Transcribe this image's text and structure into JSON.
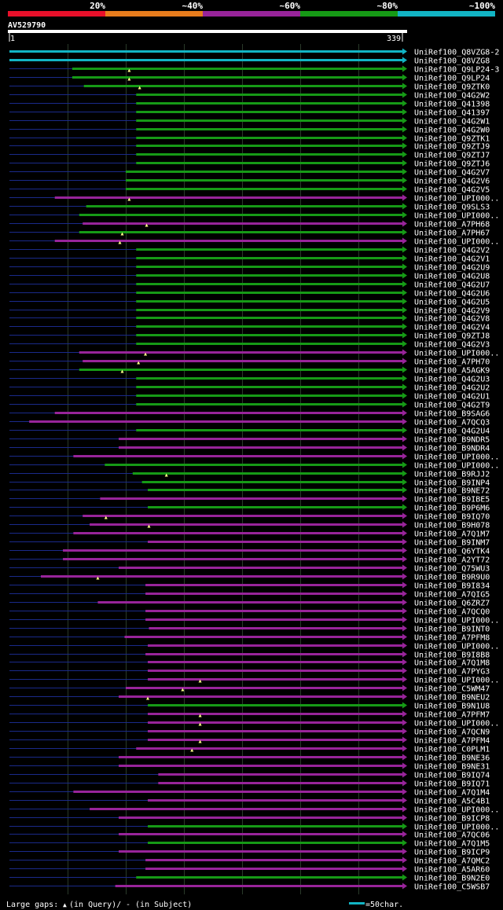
{
  "colors": {
    "scale": [
      "#e8102a",
      "#e87c1c",
      "#98249a",
      "#169a16",
      "#12b4c4"
    ],
    "pct_color_map": {
      "100": "#12b4c4",
      "80": "#169a16",
      "60": "#98249a"
    },
    "gap": "#1a2a8a",
    "marker": "#ffff88",
    "grid": "#2a3a2a"
  },
  "scale_bar": {
    "labels": [
      "20%",
      "~40%",
      "~60%",
      "~80%",
      "~100%"
    ]
  },
  "query": {
    "name": "AV529790",
    "start_label": "1",
    "end_label": "339"
  },
  "legend": {
    "large_gaps_label": "Large gaps:",
    "in_query_label": "(in Query)/",
    "in_subject_label": "- (in Subject)",
    "scale_label": "=50char.",
    "query_marker": "▲",
    "subject_marker": "-"
  },
  "chart_data": {
    "type": "alignment",
    "query_length": 339,
    "scale_unit_chars": 50,
    "hits": [
      {
        "name": "UniRef100_Q8VZG8-2",
        "start": 1,
        "end": 339,
        "pct": 100,
        "ins": []
      },
      {
        "name": "UniRef100_Q8VZG8",
        "start": 1,
        "end": 339,
        "pct": 100,
        "ins": []
      },
      {
        "name": "UniRef100_Q9LP24-3",
        "start": 55,
        "end": 339,
        "pct": 80,
        "ins": [
          104
        ]
      },
      {
        "name": "UniRef100_Q9LP24",
        "start": 55,
        "end": 339,
        "pct": 80,
        "ins": [
          104
        ]
      },
      {
        "name": "UniRef100_Q9ZTK0",
        "start": 65,
        "end": 339,
        "pct": 80,
        "ins": [
          113
        ]
      },
      {
        "name": "UniRef100_Q4G2W2",
        "start": 110,
        "end": 339,
        "pct": 80,
        "ins": []
      },
      {
        "name": "UniRef100_Q41398",
        "start": 110,
        "end": 339,
        "pct": 80,
        "ins": []
      },
      {
        "name": "UniRef100_Q41397",
        "start": 110,
        "end": 339,
        "pct": 80,
        "ins": []
      },
      {
        "name": "UniRef100_Q4G2W1",
        "start": 110,
        "end": 339,
        "pct": 80,
        "ins": []
      },
      {
        "name": "UniRef100_Q4G2W0",
        "start": 110,
        "end": 339,
        "pct": 80,
        "ins": []
      },
      {
        "name": "UniRef100_Q9ZTK1",
        "start": 110,
        "end": 339,
        "pct": 80,
        "ins": []
      },
      {
        "name": "UniRef100_Q9ZTJ9",
        "start": 110,
        "end": 339,
        "pct": 80,
        "ins": []
      },
      {
        "name": "UniRef100_Q9ZTJ7",
        "start": 110,
        "end": 339,
        "pct": 80,
        "ins": []
      },
      {
        "name": "UniRef100_Q9ZTJ6",
        "start": 110,
        "end": 339,
        "pct": 80,
        "ins": []
      },
      {
        "name": "UniRef100_Q4G2V7",
        "start": 101,
        "end": 339,
        "pct": 80,
        "ins": []
      },
      {
        "name": "UniRef100_Q4G2V6",
        "start": 101,
        "end": 339,
        "pct": 80,
        "ins": []
      },
      {
        "name": "UniRef100_Q4G2V5",
        "start": 101,
        "end": 339,
        "pct": 80,
        "ins": []
      },
      {
        "name": "UniRef100_UPI000..",
        "start": 40,
        "end": 339,
        "pct": 60,
        "ins": [
          104
        ]
      },
      {
        "name": "UniRef100_Q9SLS3",
        "start": 67,
        "end": 339,
        "pct": 80,
        "ins": []
      },
      {
        "name": "UniRef100_UPI000..",
        "start": 61,
        "end": 339,
        "pct": 80,
        "ins": []
      },
      {
        "name": "UniRef100_A7PH68",
        "start": 64,
        "end": 339,
        "pct": 60,
        "ins": [
          119
        ]
      },
      {
        "name": "UniRef100_A7PH67",
        "start": 61,
        "end": 339,
        "pct": 80,
        "ins": [
          98
        ]
      },
      {
        "name": "UniRef100_UPI000..",
        "start": 40,
        "end": 339,
        "pct": 60,
        "ins": [
          96
        ]
      },
      {
        "name": "UniRef100_Q4G2V2",
        "start": 110,
        "end": 339,
        "pct": 80,
        "ins": []
      },
      {
        "name": "UniRef100_Q4G2V1",
        "start": 110,
        "end": 339,
        "pct": 80,
        "ins": []
      },
      {
        "name": "UniRef100_Q4G2U9",
        "start": 110,
        "end": 339,
        "pct": 80,
        "ins": []
      },
      {
        "name": "UniRef100_Q4G2U8",
        "start": 110,
        "end": 339,
        "pct": 80,
        "ins": []
      },
      {
        "name": "UniRef100_Q4G2U7",
        "start": 110,
        "end": 339,
        "pct": 80,
        "ins": []
      },
      {
        "name": "UniRef100_Q4G2U6",
        "start": 110,
        "end": 339,
        "pct": 80,
        "ins": []
      },
      {
        "name": "UniRef100_Q4G2U5",
        "start": 110,
        "end": 339,
        "pct": 80,
        "ins": []
      },
      {
        "name": "UniRef100_Q4G2V9",
        "start": 110,
        "end": 339,
        "pct": 80,
        "ins": []
      },
      {
        "name": "UniRef100_Q4G2V8",
        "start": 110,
        "end": 339,
        "pct": 80,
        "ins": []
      },
      {
        "name": "UniRef100_Q4G2V4",
        "start": 110,
        "end": 339,
        "pct": 80,
        "ins": []
      },
      {
        "name": "UniRef100_Q9ZTJ8",
        "start": 110,
        "end": 339,
        "pct": 80,
        "ins": []
      },
      {
        "name": "UniRef100_Q4G2V3",
        "start": 110,
        "end": 339,
        "pct": 80,
        "ins": []
      },
      {
        "name": "UniRef100_UPI000..",
        "start": 61,
        "end": 339,
        "pct": 60,
        "ins": [
          118
        ]
      },
      {
        "name": "UniRef100_A7PH70",
        "start": 64,
        "end": 339,
        "pct": 60,
        "ins": [
          112
        ]
      },
      {
        "name": "UniRef100_A5AGK9",
        "start": 61,
        "end": 339,
        "pct": 80,
        "ins": [
          98
        ]
      },
      {
        "name": "UniRef100_Q4G2U3",
        "start": 110,
        "end": 339,
        "pct": 80,
        "ins": []
      },
      {
        "name": "UniRef100_Q4G2U2",
        "start": 110,
        "end": 339,
        "pct": 80,
        "ins": []
      },
      {
        "name": "UniRef100_Q4G2U1",
        "start": 110,
        "end": 339,
        "pct": 80,
        "ins": []
      },
      {
        "name": "UniRef100_Q4G2T9",
        "start": 110,
        "end": 339,
        "pct": 80,
        "ins": []
      },
      {
        "name": "UniRef100_B9SAG6",
        "start": 40,
        "end": 339,
        "pct": 60,
        "ins": []
      },
      {
        "name": "UniRef100_A7QCQ3",
        "start": 18,
        "end": 339,
        "pct": 60,
        "ins": []
      },
      {
        "name": "UniRef100_Q4G2U4",
        "start": 110,
        "end": 339,
        "pct": 80,
        "ins": []
      },
      {
        "name": "UniRef100_B9NDR5",
        "start": 95,
        "end": 339,
        "pct": 60,
        "ins": []
      },
      {
        "name": "UniRef100_B9NDR4",
        "start": 95,
        "end": 339,
        "pct": 60,
        "ins": []
      },
      {
        "name": "UniRef100_UPI000..",
        "start": 56,
        "end": 339,
        "pct": 60,
        "ins": []
      },
      {
        "name": "UniRef100_UPI000..",
        "start": 83,
        "end": 339,
        "pct": 80,
        "ins": []
      },
      {
        "name": "UniRef100_B9RJJ2",
        "start": 107,
        "end": 339,
        "pct": 80,
        "ins": [
          136
        ]
      },
      {
        "name": "UniRef100_B9INP4",
        "start": 115,
        "end": 339,
        "pct": 80,
        "ins": []
      },
      {
        "name": "UniRef100_B9NE72",
        "start": 120,
        "end": 339,
        "pct": 80,
        "ins": []
      },
      {
        "name": "UniRef100_B9IBE5",
        "start": 79,
        "end": 339,
        "pct": 60,
        "ins": []
      },
      {
        "name": "UniRef100_B9P6M6",
        "start": 120,
        "end": 339,
        "pct": 80,
        "ins": []
      },
      {
        "name": "UniRef100_B9IQ70",
        "start": 64,
        "end": 339,
        "pct": 60,
        "ins": [
          84
        ]
      },
      {
        "name": "UniRef100_B9H078",
        "start": 70,
        "end": 339,
        "pct": 60,
        "ins": [
          121
        ]
      },
      {
        "name": "UniRef100_A7Q1M7",
        "start": 56,
        "end": 339,
        "pct": 60,
        "ins": []
      },
      {
        "name": "UniRef100_B9INM7",
        "start": 120,
        "end": 339,
        "pct": 60,
        "ins": []
      },
      {
        "name": "UniRef100_Q6YTK4",
        "start": 47,
        "end": 339,
        "pct": 60,
        "ins": []
      },
      {
        "name": "UniRef100_A2YT72",
        "start": 47,
        "end": 339,
        "pct": 60,
        "ins": []
      },
      {
        "name": "UniRef100_Q75WU3",
        "start": 95,
        "end": 339,
        "pct": 60,
        "ins": []
      },
      {
        "name": "UniRef100_B9R9U0",
        "start": 28,
        "end": 339,
        "pct": 60,
        "ins": [
          77
        ]
      },
      {
        "name": "UniRef100_B9I834",
        "start": 118,
        "end": 339,
        "pct": 60,
        "ins": []
      },
      {
        "name": "UniRef100_A7QIG5",
        "start": 118,
        "end": 339,
        "pct": 60,
        "ins": []
      },
      {
        "name": "UniRef100_Q6ZRZ7",
        "start": 77,
        "end": 339,
        "pct": 60,
        "ins": []
      },
      {
        "name": "UniRef100_A7QCQ0",
        "start": 118,
        "end": 339,
        "pct": 60,
        "ins": []
      },
      {
        "name": "UniRef100_UPI000..",
        "start": 118,
        "end": 339,
        "pct": 60,
        "ins": []
      },
      {
        "name": "UniRef100_B9INT0",
        "start": 121,
        "end": 339,
        "pct": 60,
        "ins": []
      },
      {
        "name": "UniRef100_A7PFM8",
        "start": 100,
        "end": 339,
        "pct": 60,
        "ins": []
      },
      {
        "name": "UniRef100_UPI000..",
        "start": 120,
        "end": 339,
        "pct": 60,
        "ins": []
      },
      {
        "name": "UniRef100_B9I8B8",
        "start": 118,
        "end": 339,
        "pct": 60,
        "ins": []
      },
      {
        "name": "UniRef100_A7Q1M8",
        "start": 120,
        "end": 339,
        "pct": 60,
        "ins": []
      },
      {
        "name": "UniRef100_A7PYG3",
        "start": 120,
        "end": 339,
        "pct": 60,
        "ins": []
      },
      {
        "name": "UniRef100_UPI000..",
        "start": 120,
        "end": 339,
        "pct": 60,
        "ins": [
          165
        ]
      },
      {
        "name": "UniRef100_C5WM47",
        "start": 101,
        "end": 339,
        "pct": 60,
        "ins": [
          150
        ]
      },
      {
        "name": "UniRef100_B9NEU2",
        "start": 95,
        "end": 339,
        "pct": 60,
        "ins": [
          120
        ]
      },
      {
        "name": "UniRef100_B9N1U8",
        "start": 120,
        "end": 339,
        "pct": 80,
        "ins": []
      },
      {
        "name": "UniRef100_A7PFM7",
        "start": 120,
        "end": 339,
        "pct": 60,
        "ins": [
          165
        ]
      },
      {
        "name": "UniRef100_UPI000..",
        "start": 120,
        "end": 339,
        "pct": 60,
        "ins": [
          165
        ]
      },
      {
        "name": "UniRef100_A7QCN9",
        "start": 120,
        "end": 339,
        "pct": 60,
        "ins": []
      },
      {
        "name": "UniRef100_A7PFM4",
        "start": 120,
        "end": 339,
        "pct": 60,
        "ins": [
          165
        ]
      },
      {
        "name": "UniRef100_C0PLM1",
        "start": 110,
        "end": 339,
        "pct": 60,
        "ins": [
          158
        ]
      },
      {
        "name": "UniRef100_B9NE36",
        "start": 95,
        "end": 339,
        "pct": 60,
        "ins": []
      },
      {
        "name": "UniRef100_B9NE31",
        "start": 95,
        "end": 339,
        "pct": 60,
        "ins": []
      },
      {
        "name": "UniRef100_B9IQ74",
        "start": 129,
        "end": 339,
        "pct": 60,
        "ins": []
      },
      {
        "name": "UniRef100_B9IQ71",
        "start": 129,
        "end": 339,
        "pct": 60,
        "ins": []
      },
      {
        "name": "UniRef100_A7Q1M4",
        "start": 56,
        "end": 339,
        "pct": 60,
        "ins": []
      },
      {
        "name": "UniRef100_A5C4B1",
        "start": 120,
        "end": 339,
        "pct": 60,
        "ins": []
      },
      {
        "name": "UniRef100_UPI000..",
        "start": 70,
        "end": 339,
        "pct": 60,
        "ins": []
      },
      {
        "name": "UniRef100_B9ICP8",
        "start": 95,
        "end": 339,
        "pct": 60,
        "ins": []
      },
      {
        "name": "UniRef100_UPI000..",
        "start": 120,
        "end": 339,
        "pct": 80,
        "ins": []
      },
      {
        "name": "UniRef100_A7QC06",
        "start": 95,
        "end": 339,
        "pct": 60,
        "ins": []
      },
      {
        "name": "UniRef100_A7Q1M5",
        "start": 120,
        "end": 339,
        "pct": 80,
        "ins": []
      },
      {
        "name": "UniRef100_B9ICP9",
        "start": 95,
        "end": 339,
        "pct": 60,
        "ins": []
      },
      {
        "name": "UniRef100_A7QMC2",
        "start": 118,
        "end": 339,
        "pct": 60,
        "ins": []
      },
      {
        "name": "UniRef100_A5AR60",
        "start": 118,
        "end": 339,
        "pct": 60,
        "ins": []
      },
      {
        "name": "UniRef100_B9N2E0",
        "start": 110,
        "end": 339,
        "pct": 80,
        "ins": []
      },
      {
        "name": "UniRef100_C5WSB7",
        "start": 92,
        "end": 339,
        "pct": 60,
        "ins": []
      }
    ]
  }
}
